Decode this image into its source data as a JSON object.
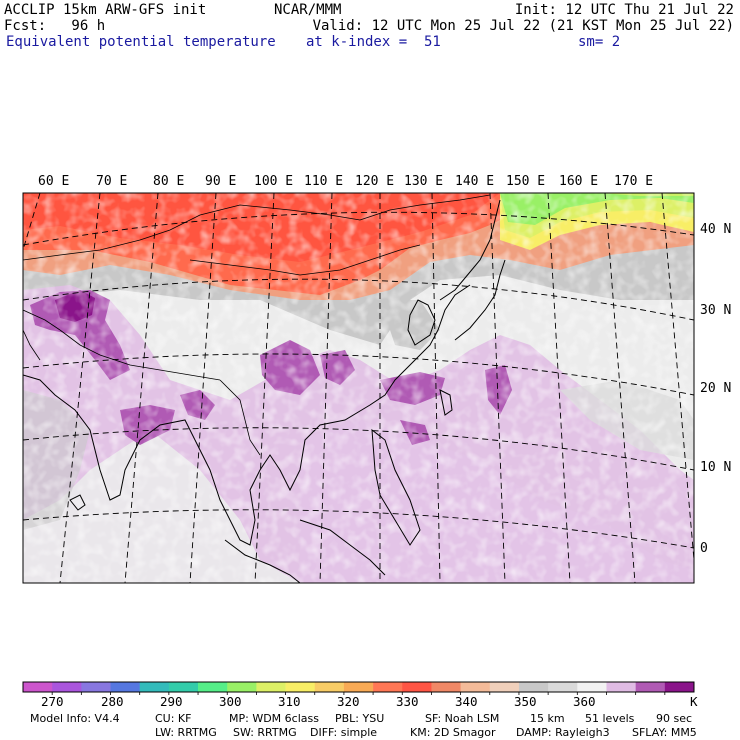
{
  "header": {
    "line1_left": "ACCLIP 15km ARW-GFS init",
    "line1_center": "NCAR/MMM",
    "line1_right": "Init: 12 UTC Thu 21 Jul 22",
    "line2_left": "Fcst:   96 h",
    "line2_right": "Valid: 12 UTC Mon 25 Jul 22 (21 KST Mon 25 Jul 22)",
    "line3_left": "Equivalent potential temperature",
    "line3_center": "at k-index =  51",
    "line3_right": "sm= 2"
  },
  "map": {
    "lon_labels": [
      "60 E",
      "70 E",
      "80 E",
      "90 E",
      "100 E",
      "110 E",
      "120 E",
      "130 E",
      "140 E",
      "150 E",
      "160 E",
      "170 E"
    ],
    "lat_labels": [
      "40 N",
      "30 N",
      "20 N",
      "10 N",
      "0"
    ]
  },
  "colorbar": {
    "colors": [
      "#cc55cc",
      "#aa55dd",
      "#8877e0",
      "#5577e0",
      "#33bbbb",
      "#33ccaa",
      "#55ee88",
      "#99f066",
      "#ddf066",
      "#f8ee66",
      "#f8cc66",
      "#f8aa55",
      "#ff7755",
      "#ff5544",
      "#f08866",
      "#f4bb99",
      "#f0d0bb",
      "#c8c8c8",
      "#dadada",
      "#f2f2f2",
      "#e0bce4",
      "#b05ab4",
      "#8a148a"
    ],
    "labels": [
      "270",
      "280",
      "290",
      "300",
      "310",
      "320",
      "330",
      "340",
      "350",
      "360"
    ],
    "unit": "K"
  },
  "footer": {
    "line1": [
      "Model Info: V4.4",
      "CU: KF",
      "MP: WDM 6class",
      "PBL: YSU",
      "SF: Noah LSM",
      "15 km",
      "51 levels",
      "90 sec"
    ],
    "line2": [
      "LW: RRTMG",
      "SW: RRTMG",
      "DIFF: simple",
      "KM: 2D Smagor",
      "DAMP: Rayleigh3",
      "SFLAY: MM5"
    ]
  }
}
